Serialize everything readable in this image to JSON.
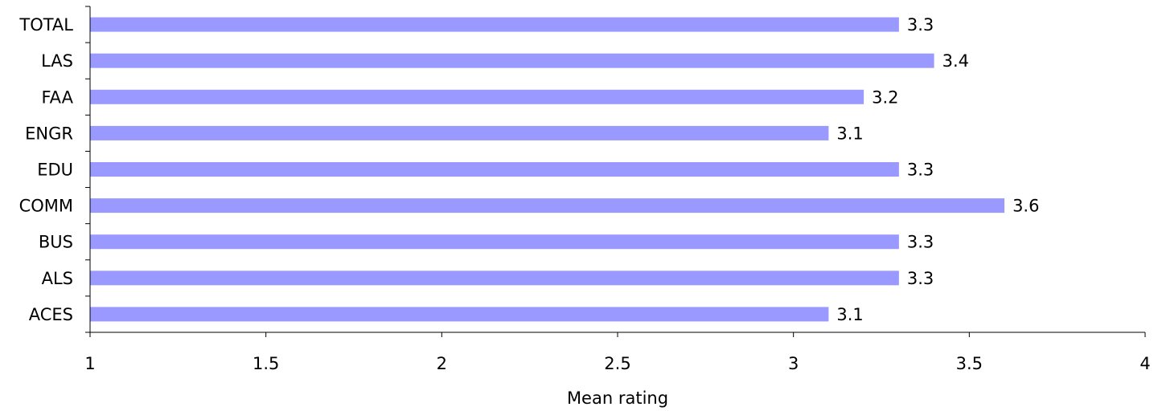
{
  "chart_data": {
    "type": "bar",
    "orientation": "horizontal",
    "categories": [
      "TOTAL",
      "LAS",
      "FAA",
      "ENGR",
      "EDU",
      "COMM",
      "BUS",
      "ALS",
      "ACES"
    ],
    "values": [
      3.3,
      3.4,
      3.2,
      3.1,
      3.3,
      3.6,
      3.3,
      3.3,
      3.1
    ],
    "value_labels": [
      "3.3",
      "3.4",
      "3.2",
      "3.1",
      "3.3",
      "3.6",
      "3.3",
      "3.3",
      "3.1"
    ],
    "xlim": [
      1,
      4
    ],
    "xticks": [
      1,
      1.5,
      2,
      2.5,
      3,
      3.5,
      4
    ],
    "xtick_labels": [
      "1",
      "1.5",
      "2",
      "2.5",
      "3",
      "3.5",
      "4"
    ],
    "xlabel": "Mean rating",
    "ylabel": "",
    "title": "",
    "grid": false,
    "legend": "none",
    "bar_color": "#9999FF"
  }
}
